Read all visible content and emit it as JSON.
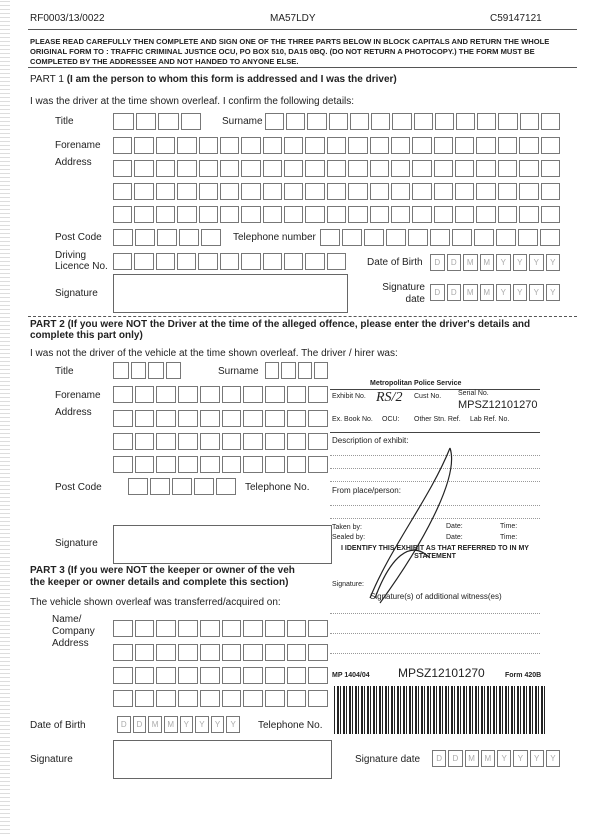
{
  "header": {
    "ref": "RF0003/13/0022",
    "vrm": "MA57LDY",
    "notice": "C59147121"
  },
  "instructions": "PLEASE READ CAREFULLY THEN COMPLETE AND SIGN ONE OF THE THREE PARTS BELOW IN BLOCK CAPITALS AND RETURN THE WHOLE ORIGINAL FORM TO : TRAFFIC CRIMINAL JUSTICE OCU, PO BOX 510, DA15 0BQ. (DO NOT RETURN A PHOTOCOPY.) THE FORM MUST BE COMPLETED BY THE ADDRESSEE AND NOT HANDED TO ANYONE ELSE.",
  "part1": {
    "heading_a": "PART 1",
    "heading_b": "(I am the person to whom this form is addressed and I was the driver)",
    "intro": "I was the driver at the time shown overleaf.  I confirm the following details:",
    "title": "Title",
    "surname": "Surname",
    "forename": "Forename",
    "address": "Address",
    "postcode": "Post Code",
    "telephone": "Telephone number",
    "licence": "Driving Licence No.",
    "dob": "Date of Birth",
    "signature": "Signature",
    "sigdate": "Signature date"
  },
  "part2": {
    "heading": "PART 2 (If you were NOT the Driver at the time of the alleged offence, please enter the driver's details and complete this part only)",
    "intro": "I was not the driver of the vehicle at the time shown overleaf.  The driver / hirer was:",
    "title": "Title",
    "surname": "Surname",
    "forename": "Forename",
    "address": "Address",
    "postcode": "Post Code",
    "telephone": "Telephone No.",
    "signature": "Signature"
  },
  "part3": {
    "heading": "PART 3 (If you were NOT the keeper or owner of the veh",
    "heading2": "the keeper or owner details and complete this section)",
    "intro": "The vehicle shown overleaf was transferred/acquired on:",
    "name": "Name/ Company Address",
    "dob": "Date of Birth",
    "telephone": "Telephone No.",
    "signature": "Signature",
    "sigdate": "Signature date"
  },
  "date_placeholders": [
    "D",
    "D",
    "M",
    "M",
    "Y",
    "Y",
    "Y",
    "Y"
  ],
  "stamp": {
    "org": "Metropolitan Police Service",
    "exhibit": "Exhibit No.",
    "exhibit_value": "RS/2",
    "cust": "Cust No.",
    "serial": "Serial No.",
    "serial_value": "MPSZ12101270",
    "exbook": "Ex. Book No.",
    "ocu": "OCU:",
    "other": "Other Stn. Ref.",
    "lab": "Lab Ref. No.",
    "desc": "Description of exhibit:",
    "from": "From place/person:",
    "taken": "Taken by:",
    "sealed": "Sealed by:",
    "date": "Date:",
    "time": "Time:",
    "identify": "I IDENTIFY THIS EXHIBIT AS THAT REFERRED TO IN MY STATEMENT",
    "sig": "Signature:",
    "witness": "Signature(s) of additional witness(es)",
    "form_no": "MP 1404/04",
    "form": "Form 420B"
  }
}
